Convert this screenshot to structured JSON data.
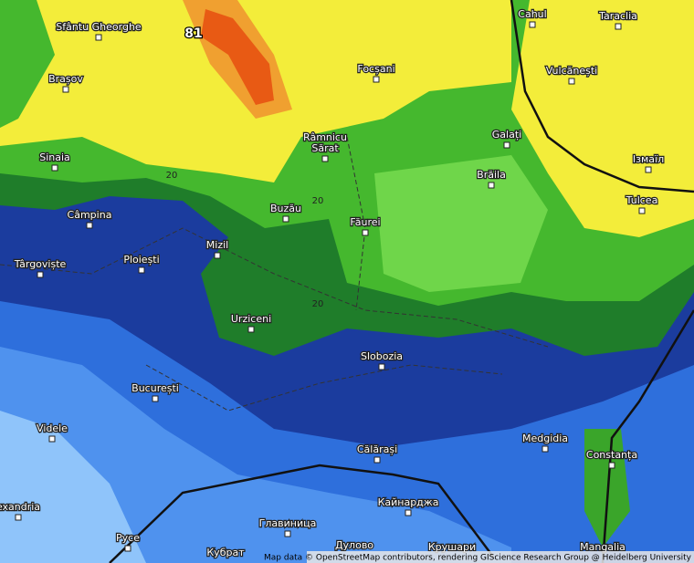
{
  "map": {
    "max_label": "81",
    "contour_labels": [
      "20",
      "20",
      "20"
    ],
    "places": [
      "Sfântu Gheorghe",
      "Brașov",
      "Sinaia",
      "Câmpina",
      "Târgoviște",
      "Ploiești",
      "Mizil",
      "Buzău",
      "Râmnicu",
      "Sărat",
      "Focșani",
      "Făurei",
      "Urziceni",
      "Slobozia",
      "București",
      "Videle",
      "Călărași",
      "Medgidia",
      "Constanța",
      "Mangalia",
      "exandria",
      "Cahul",
      "Taraclia",
      "Vulcănești",
      "Galați",
      "Brăila",
      "Ізмаїл",
      "Tulcea",
      "Кайнарджа",
      "Главиница",
      "Дулово",
      "Крушари",
      "Русе",
      "Кубрат"
    ],
    "attribution": "Map data © OpenStreetMap contributors, rendering GIScience Research Group @ Heidelberg University"
  }
}
